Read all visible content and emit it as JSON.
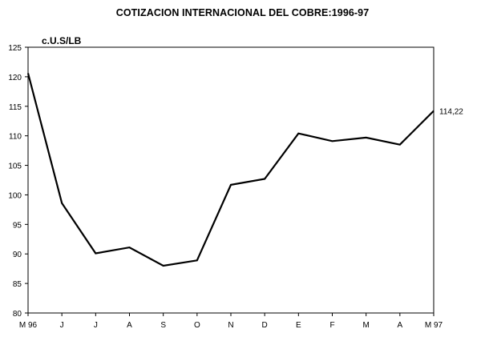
{
  "chart_data": {
    "type": "line",
    "title": "COTIZACION INTERNACIONAL DEL COBRE:1996-97",
    "unit_label": "c.U.S/LB",
    "xlabel": "",
    "ylabel": "",
    "ylim": [
      80,
      125
    ],
    "yticks": [
      "80",
      "85",
      "90",
      "95",
      "100",
      "105",
      "110",
      "115",
      "120",
      "125"
    ],
    "categories": [
      "M 96",
      "J",
      "J",
      "A",
      "S",
      "O",
      "N",
      "D",
      "E",
      "F",
      "M",
      "A",
      "M 97"
    ],
    "series": [
      {
        "values": [
          120.6,
          98.6,
          90.1,
          91.1,
          88.0,
          88.9,
          101.7,
          102.7,
          110.4,
          109.1,
          109.7,
          108.5,
          114.22
        ]
      }
    ],
    "annotations": [
      {
        "point_index": 12,
        "text": "114,22"
      }
    ],
    "grid": false,
    "legend": "none",
    "line_color": "#000000"
  }
}
